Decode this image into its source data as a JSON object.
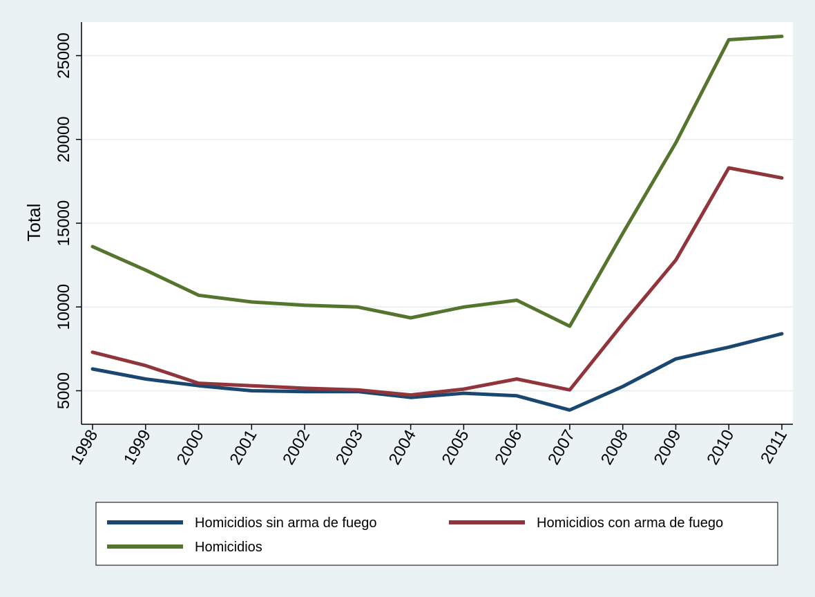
{
  "chart_data": {
    "type": "line",
    "title": "",
    "xlabel": "",
    "ylabel": "Total",
    "x": [
      "1998",
      "1999",
      "2000",
      "2001",
      "2002",
      "2003",
      "2004",
      "2005",
      "2006",
      "2007",
      "2008",
      "2009",
      "2010",
      "2011"
    ],
    "ylim": [
      3000,
      27000
    ],
    "yticks": [
      5000,
      10000,
      15000,
      20000,
      25000
    ],
    "grid": true,
    "legend_position": "bottom",
    "series": [
      {
        "name": "Homicidios sin arma de fuego",
        "color": "#1a476f",
        "values": [
          6300,
          5700,
          5300,
          5000,
          4950,
          4950,
          4600,
          4850,
          4700,
          3850,
          5250,
          6900,
          7600,
          8400
        ]
      },
      {
        "name": "Homicidios con arma de fuego",
        "color": "#90353b",
        "values": [
          7300,
          6500,
          5450,
          5300,
          5150,
          5050,
          4750,
          5100,
          5700,
          5050,
          9000,
          12800,
          18300,
          17700
        ]
      },
      {
        "name": "Homicidios",
        "color": "#55752f",
        "values": [
          13600,
          12200,
          10700,
          10300,
          10100,
          10000,
          9350,
          10000,
          10400,
          8850,
          14400,
          19800,
          25950,
          26150
        ]
      }
    ]
  }
}
